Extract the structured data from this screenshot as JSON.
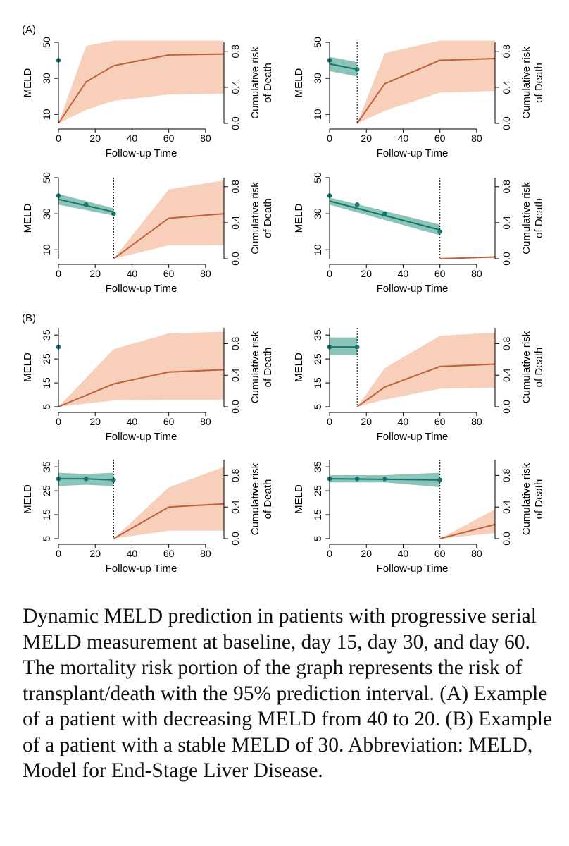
{
  "colors": {
    "meld": "#11776f",
    "meld_band": "#8cc5b7",
    "risk": "#c0613e",
    "risk_band": "#f8cfbb",
    "axis": "#000000"
  },
  "sections": [
    {
      "label": "(A)"
    },
    {
      "label": "(B)"
    }
  ],
  "caption": "Dynamic MELD prediction in patients with progressive serial MELD measurement at baseline, day 15, day 30, and day 60. The mortality risk portion of the graph represents the risk of transplant/death with the 95% prediction interval. (A) Example of a patient with decreasing MELD from 40 to 20. (B) Example of a patient with a stable MELD of 30. Abbreviation: MELD, Model for End-Stage Liver Disease.",
  "chart_data": [
    {
      "type": "line",
      "panel": "A1",
      "xlabel": "Follow-up Time",
      "ylabel": "MELD",
      "y2label": [
        "Cumulative risk",
        "of Death"
      ],
      "xlim": [
        0,
        90
      ],
      "xticks": [
        0,
        20,
        40,
        60,
        80
      ],
      "ylim": [
        5,
        50
      ],
      "yticks": [
        10,
        30,
        50
      ],
      "y2lim": [
        0,
        0.9
      ],
      "y2ticks": [
        0.0,
        0.4,
        0.8
      ],
      "landmark": 0,
      "meld_points": [
        {
          "x": 0,
          "y": 40
        }
      ],
      "meld_fit": [],
      "risk_series": [
        {
          "x": 0,
          "y": 0.0,
          "lo": 0.0,
          "hi": 0.0
        },
        {
          "x": 15,
          "y": 0.46,
          "lo": 0.15,
          "hi": 0.86
        },
        {
          "x": 30,
          "y": 0.64,
          "lo": 0.25,
          "hi": 0.92
        },
        {
          "x": 60,
          "y": 0.76,
          "lo": 0.32,
          "hi": 0.92
        },
        {
          "x": 90,
          "y": 0.77,
          "lo": 0.33,
          "hi": 0.92
        }
      ]
    },
    {
      "type": "line",
      "panel": "A2",
      "xlabel": "Follow-up Time",
      "ylabel": "MELD",
      "y2label": [
        "Cumulative risk",
        "of Death"
      ],
      "xlim": [
        0,
        90
      ],
      "xticks": [
        0,
        20,
        40,
        60,
        80
      ],
      "ylim": [
        5,
        50
      ],
      "yticks": [
        10,
        30,
        50
      ],
      "y2lim": [
        0,
        0.9
      ],
      "y2ticks": [
        0.0,
        0.4,
        0.8
      ],
      "landmark": 15,
      "meld_points": [
        {
          "x": 0,
          "y": 40
        },
        {
          "x": 15,
          "y": 35
        }
      ],
      "meld_fit": [
        {
          "x": 0,
          "y": 38,
          "lo": 34,
          "hi": 42
        },
        {
          "x": 15,
          "y": 35,
          "lo": 31,
          "hi": 39
        }
      ],
      "risk_series": [
        {
          "x": 15,
          "y": 0.0,
          "lo": 0.0,
          "hi": 0.0
        },
        {
          "x": 30,
          "y": 0.44,
          "lo": 0.14,
          "hi": 0.78
        },
        {
          "x": 60,
          "y": 0.7,
          "lo": 0.34,
          "hi": 0.92
        },
        {
          "x": 90,
          "y": 0.72,
          "lo": 0.36,
          "hi": 0.92
        }
      ]
    },
    {
      "type": "line",
      "panel": "A3",
      "xlabel": "Follow-up Time",
      "ylabel": "MELD",
      "y2label": [
        "Cumulative risk",
        "of Death"
      ],
      "xlim": [
        0,
        90
      ],
      "xticks": [
        0,
        20,
        40,
        60,
        80
      ],
      "ylim": [
        5,
        50
      ],
      "yticks": [
        10,
        30,
        50
      ],
      "y2lim": [
        0,
        0.9
      ],
      "y2ticks": [
        0.0,
        0.4,
        0.8
      ],
      "landmark": 30,
      "meld_points": [
        {
          "x": 0,
          "y": 40
        },
        {
          "x": 15,
          "y": 35
        },
        {
          "x": 30,
          "y": 30
        }
      ],
      "meld_fit": [
        {
          "x": 0,
          "y": 38,
          "lo": 35,
          "hi": 41
        },
        {
          "x": 30,
          "y": 31,
          "lo": 29,
          "hi": 33
        }
      ],
      "risk_series": [
        {
          "x": 30,
          "y": 0.0,
          "lo": 0.0,
          "hi": 0.0
        },
        {
          "x": 60,
          "y": 0.45,
          "lo": 0.15,
          "hi": 0.77
        },
        {
          "x": 90,
          "y": 0.5,
          "lo": 0.15,
          "hi": 0.87
        }
      ]
    },
    {
      "type": "line",
      "panel": "A4",
      "xlabel": "Follow-up Time",
      "ylabel": "MELD",
      "y2label": [
        "Cumulative risk",
        "of Death"
      ],
      "xlim": [
        0,
        90
      ],
      "xticks": [
        0,
        20,
        40,
        60,
        80
      ],
      "ylim": [
        5,
        50
      ],
      "yticks": [
        10,
        30,
        50
      ],
      "y2lim": [
        0,
        0.9
      ],
      "y2ticks": [
        0.0,
        0.4,
        0.8
      ],
      "landmark": 60,
      "meld_points": [
        {
          "x": 0,
          "y": 40
        },
        {
          "x": 15,
          "y": 35
        },
        {
          "x": 30,
          "y": 30
        },
        {
          "x": 60,
          "y": 20
        }
      ],
      "meld_fit": [
        {
          "x": 0,
          "y": 37,
          "lo": 35,
          "hi": 39
        },
        {
          "x": 60,
          "y": 21,
          "lo": 18,
          "hi": 24
        }
      ],
      "risk_series": [
        {
          "x": 60,
          "y": 0.0,
          "lo": 0.0,
          "hi": 0.0
        },
        {
          "x": 90,
          "y": 0.02,
          "lo": 0.01,
          "hi": 0.03
        }
      ]
    },
    {
      "type": "line",
      "panel": "B1",
      "xlabel": "Follow-up Time",
      "ylabel": "MELD",
      "y2label": [
        "Cumulative risk",
        "of Death"
      ],
      "xlim": [
        0,
        90
      ],
      "xticks": [
        0,
        20,
        40,
        60,
        80
      ],
      "ylim": [
        5,
        38
      ],
      "yticks": [
        5,
        15,
        25,
        35
      ],
      "y2lim": [
        0,
        1.0
      ],
      "y2ticks": [
        0.0,
        0.4,
        0.8
      ],
      "landmark": 0,
      "meld_points": [
        {
          "x": 0,
          "y": 30
        }
      ],
      "meld_fit": [],
      "risk_series": [
        {
          "x": 0,
          "y": 0.0,
          "lo": 0.0,
          "hi": 0.0
        },
        {
          "x": 30,
          "y": 0.29,
          "lo": 0.08,
          "hi": 0.73
        },
        {
          "x": 60,
          "y": 0.44,
          "lo": 0.09,
          "hi": 0.93
        },
        {
          "x": 90,
          "y": 0.47,
          "lo": 0.09,
          "hi": 0.95
        }
      ]
    },
    {
      "type": "line",
      "panel": "B2",
      "xlabel": "Follow-up Time",
      "ylabel": "MELD",
      "y2label": [
        "Cumulative risk",
        "of Death"
      ],
      "xlim": [
        0,
        90
      ],
      "xticks": [
        0,
        20,
        40,
        60,
        80
      ],
      "ylim": [
        5,
        38
      ],
      "yticks": [
        5,
        15,
        25,
        35
      ],
      "y2lim": [
        0,
        1.0
      ],
      "y2ticks": [
        0.0,
        0.4,
        0.8
      ],
      "landmark": 15,
      "meld_points": [
        {
          "x": 0,
          "y": 30
        },
        {
          "x": 15,
          "y": 30
        }
      ],
      "meld_fit": [
        {
          "x": 0,
          "y": 30,
          "lo": 26.5,
          "hi": 34
        },
        {
          "x": 15,
          "y": 30,
          "lo": 26.5,
          "hi": 34
        }
      ],
      "risk_series": [
        {
          "x": 15,
          "y": 0.0,
          "lo": 0.0,
          "hi": 0.0
        },
        {
          "x": 30,
          "y": 0.25,
          "lo": 0.09,
          "hi": 0.49
        },
        {
          "x": 60,
          "y": 0.51,
          "lo": 0.23,
          "hi": 0.9
        },
        {
          "x": 90,
          "y": 0.54,
          "lo": 0.24,
          "hi": 0.94
        }
      ]
    },
    {
      "type": "line",
      "panel": "B3",
      "xlabel": "Follow-up Time",
      "ylabel": "MELD",
      "y2label": [
        "Cumulative risk",
        "of Death"
      ],
      "xlim": [
        0,
        90
      ],
      "xticks": [
        0,
        20,
        40,
        60,
        80
      ],
      "ylim": [
        5,
        38
      ],
      "yticks": [
        5,
        15,
        25,
        35
      ],
      "y2lim": [
        0,
        1.0
      ],
      "y2ticks": [
        0.0,
        0.4,
        0.8
      ],
      "landmark": 30,
      "meld_points": [
        {
          "x": 0,
          "y": 30
        },
        {
          "x": 15,
          "y": 30
        },
        {
          "x": 30,
          "y": 29.5
        }
      ],
      "meld_fit": [
        {
          "x": 0,
          "y": 30,
          "lo": 27,
          "hi": 32.5
        },
        {
          "x": 15,
          "y": 30,
          "lo": 27.5,
          "hi": 32
        },
        {
          "x": 30,
          "y": 29.5,
          "lo": 27,
          "hi": 32.5
        }
      ],
      "risk_series": [
        {
          "x": 30,
          "y": 0.0,
          "lo": 0.0,
          "hi": 0.0
        },
        {
          "x": 60,
          "y": 0.4,
          "lo": 0.1,
          "hi": 0.65
        },
        {
          "x": 90,
          "y": 0.44,
          "lo": 0.1,
          "hi": 0.91
        }
      ]
    },
    {
      "type": "line",
      "panel": "B4",
      "xlabel": "Follow-up Time",
      "ylabel": "MELD",
      "y2label": [
        "Cumulative risk",
        "of Death"
      ],
      "xlim": [
        0,
        90
      ],
      "xticks": [
        0,
        20,
        40,
        60,
        80
      ],
      "ylim": [
        5,
        38
      ],
      "yticks": [
        5,
        15,
        25,
        35
      ],
      "y2lim": [
        0,
        1.0
      ],
      "y2ticks": [
        0.0,
        0.4,
        0.8
      ],
      "landmark": 60,
      "meld_points": [
        {
          "x": 0,
          "y": 30
        },
        {
          "x": 15,
          "y": 30
        },
        {
          "x": 30,
          "y": 30
        },
        {
          "x": 60,
          "y": 29.5
        }
      ],
      "meld_fit": [
        {
          "x": 0,
          "y": 30,
          "lo": 28.5,
          "hi": 31.5
        },
        {
          "x": 30,
          "y": 29.8,
          "lo": 28.5,
          "hi": 31.5
        },
        {
          "x": 60,
          "y": 29.5,
          "lo": 26.5,
          "hi": 32.5
        }
      ],
      "risk_series": [
        {
          "x": 60,
          "y": 0.0,
          "lo": 0.0,
          "hi": 0.0
        },
        {
          "x": 90,
          "y": 0.18,
          "lo": 0.07,
          "hi": 0.37
        }
      ]
    }
  ]
}
